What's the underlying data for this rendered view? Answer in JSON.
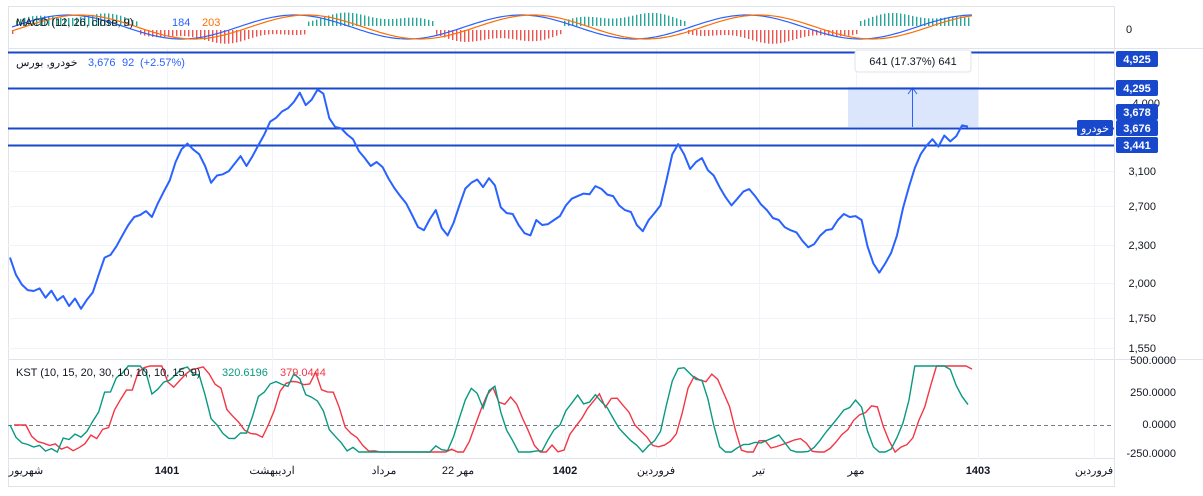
{
  "symbol": {
    "name": "خودرو, بورس",
    "price": "3,676",
    "change": "92",
    "change_pct": "(+2.57%)"
  },
  "measure": {
    "label": "641 (17.37%) 641"
  },
  "macd": {
    "title": "MACD (12, 26, close, 9)",
    "v1": "184",
    "v2": "203",
    "zero_label": "0",
    "colors": {
      "macd": "#2962ff",
      "signal": "#ff6d00",
      "hist_up": "#26a69a",
      "hist_down": "#ef5350"
    }
  },
  "kst": {
    "title": "KST (10, 15, 20, 30, 10, 10, 10, 15, 9)",
    "v1": "320.6196",
    "v2": "379.0444",
    "colors": {
      "kst": "#089981",
      "signal": "#f23645"
    },
    "y_labels": [
      "500.0000",
      "250.0000",
      "0.0000",
      "-250.0000"
    ]
  },
  "price_axis": {
    "ticks": [
      "3,100",
      "2,700",
      "2,300",
      "2,000",
      "1,750",
      "1,550"
    ],
    "hidden_tick": "4,000"
  },
  "levels": [
    {
      "label": "4,925",
      "value": 4925
    },
    {
      "label": "4,295",
      "value": 4295
    },
    {
      "label": "3,678",
      "value": 3678
    },
    {
      "label": "3,441",
      "value": 3441
    }
  ],
  "current_price_tag": {
    "name": "خودرو",
    "value": "3,676"
  },
  "time_axis": [
    "شهریور",
    "1401",
    "اردیبهشت",
    "مرداد",
    "22 مهر",
    "1402",
    "فروردین",
    "تیر",
    "مهر",
    "1403",
    "فروردین"
  ],
  "colors": {
    "line": "#2962ff",
    "level": "#1848cc",
    "tag_bg": "#1848cc",
    "measure_fill": "#dbe5fb"
  },
  "chart_data": {
    "type": "line",
    "y_scale": "log",
    "ylim": [
      1500,
      5000
    ],
    "series": [
      {
        "name": "خودرو",
        "values": [
          2200,
          2050,
          1980,
          1960,
          1930,
          1950,
          1880,
          1910,
          1860,
          1900,
          1820,
          1860,
          1800,
          1880,
          1920,
          2050,
          2200,
          2250,
          2300,
          2400,
          2500,
          2550,
          2600,
          2650,
          2580,
          2700,
          2850,
          3000,
          3200,
          3350,
          3440,
          3400,
          3300,
          3150,
          2950,
          3000,
          3050,
          3100,
          3180,
          3250,
          3150,
          3300,
          3420,
          3550,
          3750,
          3850,
          3900,
          3950,
          4050,
          4150,
          4000,
          4100,
          4250,
          4150,
          3800,
          3700,
          3650,
          3550,
          3500,
          3380,
          3250,
          3150,
          3200,
          3100,
          3000,
          2900,
          2800,
          2700,
          2600,
          2500,
          2450,
          2550,
          2650,
          2500,
          2400,
          2520,
          2700,
          2850,
          2950,
          3000,
          2900,
          2980,
          2920,
          2700,
          2620,
          2600,
          2500,
          2450,
          2400,
          2550,
          2500,
          2480,
          2550,
          2600,
          2700,
          2750,
          2800,
          2850,
          2820,
          2900,
          2880,
          2850,
          2800,
          2700,
          2650,
          2600,
          2500,
          2450,
          2550,
          2600,
          2700,
          3000,
          3300,
          3420,
          3300,
          3150,
          3200,
          3250,
          3100,
          3000,
          2900,
          2800,
          2700,
          2750,
          2850,
          2900,
          2800,
          2700,
          2650,
          2600,
          2550,
          2480,
          2450,
          2400,
          2350,
          2300,
          2320,
          2380,
          2450,
          2480,
          2550,
          2600,
          2580,
          2620,
          2550,
          2300,
          2150,
          2050,
          2150,
          2250,
          2400,
          2650,
          2900,
          3150,
          3300,
          3400,
          3500,
          3440,
          3550,
          3470,
          3540,
          3650,
          3676
        ],
        "line_points": "x"
      }
    ],
    "x_labels": [
      "شهریور",
      "1401",
      "اردیبهشت",
      "مرداد",
      "22 مهر",
      "1402",
      "فروردین",
      "تیر",
      "مهر",
      "1403",
      "فروردین"
    ],
    "levels": [
      4925,
      4295,
      3678,
      3441
    ],
    "annotation": "641 (17.37%) 641",
    "grid": true
  }
}
